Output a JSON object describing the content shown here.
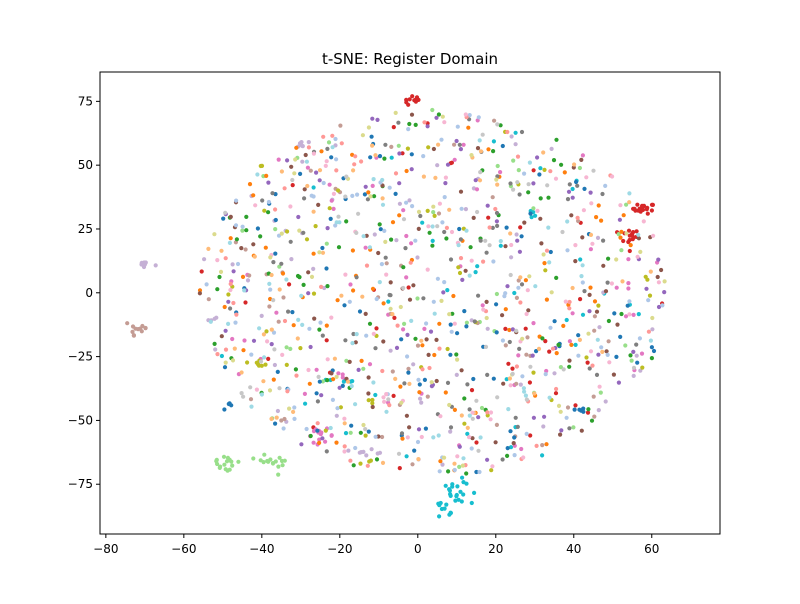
{
  "chart_data": {
    "type": "scatter",
    "title": "t-SNE: Register Domain",
    "xlabel": "",
    "ylabel": "",
    "xlim": [
      -81.5,
      77.5
    ],
    "ylim": [
      -94.5,
      86.5
    ],
    "xticks": [
      -80,
      -60,
      -40,
      -20,
      0,
      20,
      40,
      60
    ],
    "yticks": [
      -75,
      -50,
      -25,
      0,
      25,
      50,
      75
    ],
    "grid": false,
    "legend": "none",
    "series": [
      {
        "color": "#d62728",
        "clusters": [
          {
            "cx": -1,
            "cy": 75,
            "sx": 1.2,
            "sy": 1.0,
            "n": 10
          },
          {
            "cx": 58,
            "cy": 33,
            "sx": 1.4,
            "sy": 1.0,
            "n": 20
          },
          {
            "cx": 54,
            "cy": 22,
            "sx": 1.4,
            "sy": 1.4,
            "n": 14
          }
        ],
        "scatter_n": 40
      },
      {
        "color": "#17becf",
        "clusters": [
          {
            "cx": 9,
            "cy": -80,
            "sx": 2.5,
            "sy": 4.0,
            "n": 30
          },
          {
            "cx": 29,
            "cy": 31,
            "sx": 1.0,
            "sy": 0.6,
            "n": 4
          },
          {
            "cx": -18,
            "cy": -35,
            "sx": 0.8,
            "sy": 0.5,
            "n": 4
          }
        ],
        "scatter_n": 35
      },
      {
        "color": "#98df8a",
        "clusters": [
          {
            "cx": -49,
            "cy": -66,
            "sx": 2.0,
            "sy": 1.2,
            "n": 14
          },
          {
            "cx": -37,
            "cy": -66,
            "sx": 2.5,
            "sy": 1.5,
            "n": 16
          },
          {
            "cx": -48,
            "cy": -70,
            "sx": 0.6,
            "sy": 0.4,
            "n": 3
          }
        ],
        "scatter_n": 40
      },
      {
        "color": "#c5b0d5",
        "clusters": [
          {
            "cx": -70,
            "cy": 11,
            "sx": 1.0,
            "sy": 1.0,
            "n": 9
          },
          {
            "cx": -30,
            "cy": 58,
            "sx": 1.0,
            "sy": 0.6,
            "n": 6
          },
          {
            "cx": -12,
            "cy": -62,
            "sx": 2.0,
            "sy": 0.8,
            "n": 8
          },
          {
            "cx": -53,
            "cy": -10,
            "sx": 0.8,
            "sy": 0.8,
            "n": 4
          }
        ],
        "scatter_n": 55
      },
      {
        "color": "#e377c2",
        "clusters": [
          {
            "cx": -25,
            "cy": -56,
            "sx": 1.8,
            "sy": 1.3,
            "n": 14
          },
          {
            "cx": -20,
            "cy": -32,
            "sx": 0.8,
            "sy": 0.8,
            "n": 3
          }
        ],
        "scatter_n": 55
      },
      {
        "color": "#c49c94",
        "clusters": [
          {
            "cx": -72,
            "cy": -14,
            "sx": 1.8,
            "sy": 2.5,
            "n": 12
          }
        ],
        "scatter_n": 50
      },
      {
        "color": "#1f77b4",
        "clusters": [
          {
            "cx": 41,
            "cy": -46,
            "sx": 1.0,
            "sy": 0.4,
            "n": 6
          },
          {
            "cx": -48,
            "cy": -45,
            "sx": 0.6,
            "sy": 0.8,
            "n": 4
          }
        ],
        "scatter_n": 80
      },
      {
        "color": "#bcbd22",
        "clusters": [
          {
            "cx": -41,
            "cy": -28,
            "sx": 1.5,
            "sy": 0.6,
            "n": 6
          },
          {
            "cx": -12,
            "cy": -42,
            "sx": 0.6,
            "sy": 0.8,
            "n": 3
          },
          {
            "cx": -40,
            "cy": 50,
            "sx": 0.4,
            "sy": 0.3,
            "n": 2
          }
        ],
        "scatter_n": 45
      },
      {
        "color": "#ff7f0e",
        "scatter_n": 75
      },
      {
        "color": "#2ca02c",
        "scatter_n": 70
      },
      {
        "color": "#9467bd",
        "scatter_n": 70
      },
      {
        "color": "#8c564b",
        "scatter_n": 75
      },
      {
        "color": "#7f7f7f",
        "scatter_n": 70
      },
      {
        "color": "#aec7e8",
        "scatter_n": 85
      },
      {
        "color": "#ffbb78",
        "scatter_n": 60
      },
      {
        "color": "#ff9896",
        "scatter_n": 60
      },
      {
        "color": "#f7b6d2",
        "scatter_n": 70
      },
      {
        "color": "#dbdb8d",
        "scatter_n": 50
      },
      {
        "color": "#9edae5",
        "scatter_n": 60
      },
      {
        "color": "#c7c7c7",
        "scatter_n": 45
      }
    ]
  }
}
